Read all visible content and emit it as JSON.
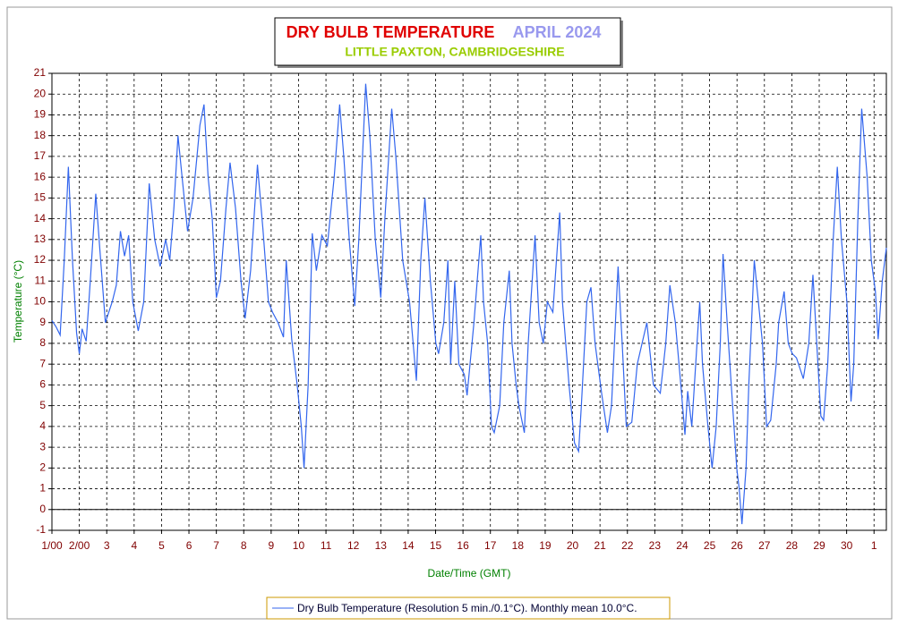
{
  "chart_data": {
    "type": "line",
    "title": "DRY BULB TEMPERATURE",
    "title_period": "APRIL 2024",
    "subtitle": "LITTLE PAXTON, CAMBRIDGESHIRE",
    "x_label": "Date/Time (GMT)",
    "y_label": "Temperature (°C)",
    "xlim": [
      0,
      30.45
    ],
    "ylim": [
      -1,
      21
    ],
    "yticks": [
      -1,
      0,
      1,
      2,
      3,
      4,
      5,
      6,
      7,
      8,
      9,
      10,
      11,
      12,
      13,
      14,
      15,
      16,
      17,
      18,
      19,
      20,
      21
    ],
    "xticks": [
      {
        "value": 0,
        "label": "1/00"
      },
      {
        "value": 1,
        "label": "2/00"
      },
      {
        "value": 2,
        "label": "3"
      },
      {
        "value": 3,
        "label": "4"
      },
      {
        "value": 4,
        "label": "5"
      },
      {
        "value": 5,
        "label": "6"
      },
      {
        "value": 6,
        "label": "7"
      },
      {
        "value": 7,
        "label": "8"
      },
      {
        "value": 8,
        "label": "9"
      },
      {
        "value": 9,
        "label": "10"
      },
      {
        "value": 10,
        "label": "11"
      },
      {
        "value": 11,
        "label": "12"
      },
      {
        "value": 12,
        "label": "13"
      },
      {
        "value": 13,
        "label": "14"
      },
      {
        "value": 14,
        "label": "15"
      },
      {
        "value": 15,
        "label": "16"
      },
      {
        "value": 16,
        "label": "17"
      },
      {
        "value": 17,
        "label": "18"
      },
      {
        "value": 18,
        "label": "19"
      },
      {
        "value": 19,
        "label": "20"
      },
      {
        "value": 20,
        "label": "21"
      },
      {
        "value": 21,
        "label": "22"
      },
      {
        "value": 22,
        "label": "23"
      },
      {
        "value": 23,
        "label": "24"
      },
      {
        "value": 24,
        "label": "25"
      },
      {
        "value": 25,
        "label": "26"
      },
      {
        "value": 26,
        "label": "27"
      },
      {
        "value": 27,
        "label": "28"
      },
      {
        "value": 28,
        "label": "29"
      },
      {
        "value": 29,
        "label": "30"
      },
      {
        "value": 30,
        "label": "1"
      }
    ],
    "grid": true,
    "x": [
      0,
      0.15,
      0.3,
      0.45,
      0.6,
      0.75,
      0.9,
      1.0,
      1.1,
      1.25,
      1.4,
      1.6,
      1.75,
      1.95,
      2.2,
      2.35,
      2.5,
      2.65,
      2.8,
      2.95,
      3.15,
      3.35,
      3.55,
      3.75,
      3.95,
      4.15,
      4.3,
      4.45,
      4.6,
      4.75,
      4.95,
      5.15,
      5.4,
      5.55,
      5.7,
      5.85,
      6.0,
      6.15,
      6.35,
      6.5,
      6.7,
      6.9,
      7.05,
      7.25,
      7.5,
      7.7,
      7.9,
      8.05,
      8.25,
      8.45,
      8.55,
      8.75,
      8.95,
      9.1,
      9.2,
      9.35,
      9.5,
      9.65,
      9.85,
      10.05,
      10.3,
      10.5,
      10.65,
      10.85,
      11.05,
      11.2,
      11.45,
      11.6,
      11.8,
      12.0,
      12.15,
      12.4,
      12.55,
      12.8,
      13.05,
      13.3,
      13.46,
      13.61,
      13.81,
      14.01,
      14.11,
      14.3,
      14.45,
      14.55,
      14.7,
      14.85,
      15.05,
      15.15,
      15.4,
      15.65,
      15.75,
      15.9,
      16.04,
      16.14,
      16.34,
      16.49,
      16.69,
      16.79,
      16.94,
      17.04,
      17.24,
      17.38,
      17.63,
      17.78,
      17.93,
      18.08,
      18.28,
      18.53,
      18.63,
      18.87,
      19.07,
      19.22,
      19.32,
      19.52,
      19.67,
      19.82,
      20.07,
      20.27,
      20.42,
      20.66,
      20.81,
      20.96,
      21.16,
      21.36,
      21.71,
      21.95,
      22.2,
      22.4,
      22.55,
      22.75,
      22.95,
      23.1,
      23.2,
      23.35,
      23.54,
      23.64,
      23.74,
      23.94,
      24.09,
      24.24,
      24.39,
      24.49,
      24.64,
      24.84,
      24.99,
      25.08,
      25.18,
      25.33,
      25.43,
      25.63,
      25.78,
      25.93,
      26.08,
      26.23,
      26.43,
      26.52,
      26.72,
      26.87,
      27.02,
      27.17,
      27.42,
      27.62,
      27.77,
      27.91,
      28.06,
      28.16,
      28.31,
      28.51,
      28.66,
      28.81,
      29.01,
      29.16,
      29.26,
      29.41,
      29.55,
      29.75,
      29.9,
      30.05,
      30.15,
      30.3,
      30.45
    ],
    "series": [
      {
        "name": "Dry Bulb Temperature (Resolution 5 min./0.1°C). Monthly mean 10.0°C.",
        "color": "#3366ee",
        "values": [
          9.1,
          8.8,
          8.4,
          12,
          16.5,
          12,
          8.5,
          7.5,
          8.7,
          8.1,
          11,
          15.2,
          12.5,
          9,
          10,
          10.8,
          13.4,
          12.2,
          13.2,
          10,
          8.6,
          10,
          15.7,
          13,
          11.7,
          13,
          12,
          14.5,
          18,
          16,
          13.4,
          15,
          18.5,
          19.5,
          16,
          14,
          10.2,
          11,
          14.5,
          16.7,
          14.5,
          11,
          9.2,
          11.5,
          16.6,
          13.5,
          10,
          9.5,
          9,
          8.3,
          12,
          8.2,
          6,
          4,
          2,
          6,
          13.3,
          11.5,
          13.2,
          12.7,
          16,
          19.5,
          17,
          13,
          9.8,
          13,
          20.5,
          18,
          13,
          10.2,
          14,
          19.3,
          17,
          12,
          10,
          6.2,
          12,
          15,
          11,
          8,
          7.5,
          9,
          12,
          7,
          11,
          7,
          6.5,
          5.5,
          9,
          13.2,
          10,
          8,
          4,
          3.7,
          5,
          9,
          11.5,
          8,
          6,
          5,
          3.7,
          8,
          13.2,
          9,
          8,
          10,
          9.5,
          14.3,
          10,
          6,
          3.2,
          2.8,
          5,
          10,
          10.7,
          8,
          5.5,
          3.7,
          5,
          11.7,
          8,
          4,
          4.2,
          7,
          9,
          6,
          5.6,
          8,
          10.8,
          9,
          6,
          3.6,
          5.7,
          4,
          8,
          10,
          7,
          4,
          2,
          4,
          8,
          12.3,
          9,
          5,
          2,
          1,
          -0.7,
          2,
          6,
          12,
          10,
          8,
          4,
          4.3,
          7,
          9,
          10.5,
          8,
          7.5,
          7.3,
          6.3,
          8,
          11.3,
          8,
          4.5,
          4.3,
          7,
          13,
          16.5,
          13,
          10,
          5.2,
          7,
          14,
          19.3,
          16,
          12,
          10.5,
          8.2,
          11,
          12.6
        ]
      }
    ]
  }
}
